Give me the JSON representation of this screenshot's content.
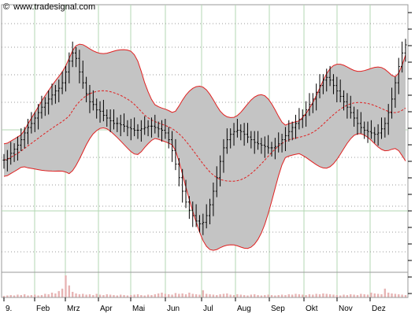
{
  "watermark": {
    "copyright_symbol": "©",
    "text": "www.tradesignal.com"
  },
  "chart_data": {
    "type": "candlestick",
    "indicators": [
      "Bollinger Bands"
    ],
    "volume_panel": true,
    "grid": true,
    "x_tick_labels": [
      "9.",
      "Feb",
      "Mrz",
      "Apr",
      "Mai",
      "Jun",
      "Jul",
      "Aug",
      "Sep",
      "Okt",
      "Nov",
      "Dez"
    ],
    "y_tick_labels_visible": false,
    "colors": {
      "band_fill": "#c4c4c4",
      "band_edge": "#e02020",
      "middle_band": "#e02020",
      "price_bars": "#000000",
      "volume_bars": "#e7b4b4",
      "grid_major": "#b3d7b3",
      "grid_minor": "#9a9a9a"
    },
    "series_close_approx": [
      -1.5,
      -1.0,
      1.0,
      2.5,
      4.0,
      6.0,
      8.5,
      10.5,
      12.0,
      14.0,
      16.0,
      18.0,
      19.5,
      21.0,
      22.5,
      24.0,
      25.0,
      27.0,
      31.0,
      35.0,
      38.0,
      36.0,
      31.0,
      27.0,
      23.0,
      20.0,
      19.0,
      17.0,
      16.5,
      15.0,
      14.0,
      13.0,
      12.0,
      12.0,
      11.5,
      11.0,
      10.5,
      10.0,
      9.5,
      9.5,
      10.0,
      10.5,
      11.0,
      11.0,
      10.5,
      10.0,
      9.5,
      8.5,
      6.0,
      2.0,
      -3.0,
      -8.0,
      -13.0,
      -17.0,
      -20.0,
      -22.0,
      -24.0,
      -25.0,
      -24.5,
      -22.0,
      -18.0,
      -13.0,
      -8.0,
      -2.0,
      3.0,
      6.0,
      8.0,
      9.0,
      9.5,
      9.0,
      8.0,
      7.0,
      6.0,
      5.0,
      4.5,
      4.0,
      3.5,
      3.0,
      3.0,
      3.5,
      4.5,
      6.0,
      7.5,
      9.0,
      10.5,
      12.0,
      13.5,
      15.0,
      17.0,
      19.0,
      21.0,
      23.5,
      26.0,
      28.0,
      29.0,
      28.0,
      26.0,
      24.0,
      22.0,
      20.0,
      18.0,
      16.0,
      14.0,
      12.0,
      10.5,
      9.5,
      9.0,
      8.5,
      8.0,
      8.5,
      10.0,
      12.0,
      16.0,
      21.0,
      27.0,
      33.0,
      38.0,
      41.0
    ],
    "volume_approx": [
      4,
      5,
      6,
      5,
      7,
      6,
      8,
      5,
      6,
      7,
      5,
      6,
      9,
      8,
      12,
      10,
      16,
      22,
      55,
      30,
      14,
      10,
      8,
      9,
      7,
      8,
      6,
      9,
      7,
      6,
      8,
      7,
      6,
      5,
      7,
      6,
      5,
      6,
      7,
      8,
      6,
      5,
      7,
      6,
      8,
      10,
      12,
      9,
      8,
      7,
      11,
      9,
      10,
      8,
      12,
      9,
      8,
      7,
      18,
      9,
      8,
      7,
      6,
      8,
      9,
      10,
      7,
      6,
      8,
      7,
      6,
      5,
      7,
      8,
      6,
      5,
      6,
      7,
      6,
      5,
      6,
      7,
      6,
      8,
      7,
      9,
      8,
      7,
      6,
      8,
      7,
      9,
      8,
      10,
      9,
      8,
      7,
      6,
      5,
      7,
      6,
      8,
      7,
      6,
      9,
      8,
      7,
      12,
      10,
      9,
      8,
      22,
      12,
      10,
      9,
      8,
      7,
      6
    ]
  }
}
